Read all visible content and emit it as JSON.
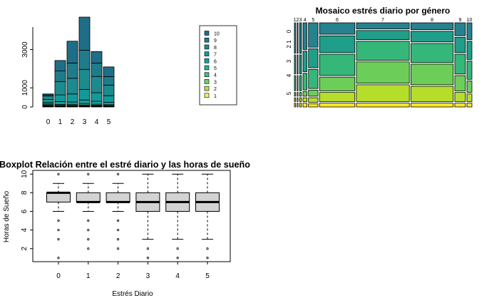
{
  "chart_data": [
    {
      "type": "bar",
      "stacked": true,
      "title": "",
      "xlabel": "",
      "ylabel": "",
      "categories": [
        "0",
        "1",
        "2",
        "3",
        "4",
        "5"
      ],
      "y_ticks": [
        0,
        1000,
        3000
      ],
      "ylim": [
        0,
        4700
      ],
      "legend": {
        "placement": "right",
        "entries": [
          "10",
          "9",
          "8",
          "7",
          "6",
          "5",
          "4",
          "3",
          "2",
          "1"
        ]
      },
      "colors": {
        "10": "#1F6E88",
        "9": "#1E7C8B",
        "8": "#1C8B8E",
        "7": "#14999A",
        "6": "#11A3A0",
        "5": "#22B38F",
        "4": "#3FC080",
        "3": "#72CF6E",
        "2": "#B8DE4A",
        "1": "#F2EE70"
      },
      "series": [
        {
          "name": "1",
          "values": [
            20,
            15,
            15,
            20,
            20,
            15
          ]
        },
        {
          "name": "2",
          "values": [
            20,
            15,
            15,
            20,
            15,
            15
          ]
        },
        {
          "name": "3",
          "values": [
            30,
            20,
            20,
            25,
            20,
            15
          ]
        },
        {
          "name": "4",
          "values": [
            40,
            30,
            30,
            40,
            30,
            25
          ]
        },
        {
          "name": "5",
          "values": [
            50,
            50,
            60,
            80,
            60,
            50
          ]
        },
        {
          "name": "6",
          "values": [
            80,
            150,
            120,
            180,
            150,
            120
          ]
        },
        {
          "name": "7",
          "values": [
            150,
            350,
            420,
            550,
            450,
            350
          ]
        },
        {
          "name": "8",
          "values": [
            180,
            700,
            820,
            1050,
            850,
            550
          ]
        },
        {
          "name": "9",
          "values": [
            60,
            550,
            800,
            1000,
            700,
            450
          ]
        },
        {
          "name": "10",
          "values": [
            50,
            550,
            1140,
            1735,
            605,
            505
          ]
        }
      ]
    },
    {
      "type": "mosaic",
      "title": "Mosaico estrés diario por género",
      "x_labels": [
        "1",
        "2",
        "3",
        "4",
        "5",
        "6",
        "7",
        "8",
        "9",
        "10"
      ],
      "y_labels": [
        "0",
        "2 1",
        "3",
        "4",
        "5"
      ],
      "column_widths": [
        0.3,
        0.3,
        0.5,
        1.1,
        2.7,
        10.0,
        15.0,
        12.0,
        3.0,
        1.4
      ],
      "y_stack_order": [
        "0",
        "1",
        "2",
        "3",
        "4",
        "5"
      ],
      "cell_proportions": [
        [
          0.05,
          0.05,
          0.05,
          0.2,
          0.25,
          0.4
        ],
        [
          0.05,
          0.05,
          0.05,
          0.2,
          0.25,
          0.4
        ],
        [
          0.05,
          0.05,
          0.05,
          0.2,
          0.25,
          0.4
        ],
        [
          0.05,
          0.05,
          0.06,
          0.22,
          0.27,
          0.35
        ],
        [
          0.04,
          0.06,
          0.08,
          0.25,
          0.25,
          0.32
        ],
        [
          0.05,
          0.12,
          0.18,
          0.28,
          0.22,
          0.15
        ],
        [
          0.05,
          0.22,
          0.28,
          0.25,
          0.12,
          0.08
        ],
        [
          0.05,
          0.2,
          0.27,
          0.25,
          0.14,
          0.09
        ],
        [
          0.05,
          0.12,
          0.2,
          0.26,
          0.2,
          0.17
        ],
        [
          0.05,
          0.1,
          0.15,
          0.24,
          0.24,
          0.22
        ]
      ],
      "colors": [
        "#FDE725",
        "#B5DE2B",
        "#6DCD59",
        "#35B779",
        "#1F9E89",
        "#26828E"
      ]
    },
    {
      "type": "boxplot",
      "title": "Boxplot Relación entre el estré diario y las horas de sueño",
      "xlabel": "Estrés Diario",
      "ylabel": "Horas de Sueño",
      "categories": [
        "0",
        "1",
        "2",
        "3",
        "4",
        "5"
      ],
      "y_ticks": [
        2,
        4,
        6,
        8,
        10
      ],
      "ylim": [
        0.6,
        10.4
      ],
      "box_color": "#D3D3D3",
      "boxes": [
        {
          "category": "0",
          "q1": 7,
          "median": 8,
          "q3": 8,
          "whisker_low": 6,
          "whisker_high": 9,
          "outliers": [
            1,
            3,
            4,
            5,
            10
          ]
        },
        {
          "category": "1",
          "q1": 7,
          "median": 7,
          "q3": 8,
          "whisker_low": 6,
          "whisker_high": 9,
          "outliers": [
            2,
            3,
            4,
            5,
            10
          ]
        },
        {
          "category": "2",
          "q1": 7,
          "median": 7,
          "q3": 8,
          "whisker_low": 6,
          "whisker_high": 9,
          "outliers": [
            2,
            3,
            4,
            5,
            10
          ]
        },
        {
          "category": "3",
          "q1": 6,
          "median": 7,
          "q3": 8,
          "whisker_low": 3,
          "whisker_high": 10,
          "outliers": [
            1,
            2
          ]
        },
        {
          "category": "4",
          "q1": 6,
          "median": 7,
          "q3": 8,
          "whisker_low": 3,
          "whisker_high": 10,
          "outliers": [
            1,
            2
          ]
        },
        {
          "category": "5",
          "q1": 6,
          "median": 7,
          "q3": 8,
          "whisker_low": 3,
          "whisker_high": 10,
          "outliers": [
            1,
            2
          ]
        }
      ]
    }
  ]
}
